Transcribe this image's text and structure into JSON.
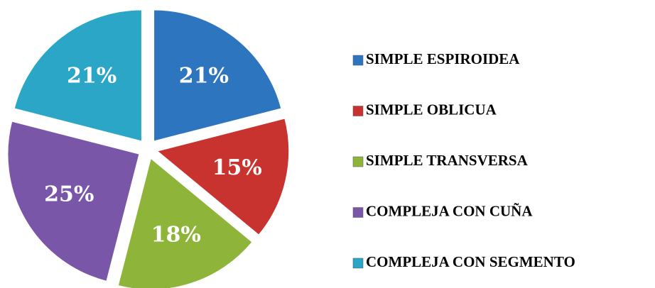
{
  "chart_data": {
    "type": "pie",
    "categories": [
      "SIMPLE ESPIROIDEA",
      "SIMPLE OBLICUA",
      "SIMPLE TRANSVERSA",
      "COMPLEJA CON CUÑA",
      "COMPLEJA CON SEGMENTO"
    ],
    "values": [
      21,
      15,
      18,
      25,
      21
    ],
    "value_labels": [
      "21%",
      "15%",
      "18%",
      "25%",
      "21%"
    ],
    "colors": [
      "#2e75c0",
      "#c8322f",
      "#8fb43a",
      "#7a56a8",
      "#2ba6c6"
    ],
    "exploded": true,
    "legend": "right"
  }
}
